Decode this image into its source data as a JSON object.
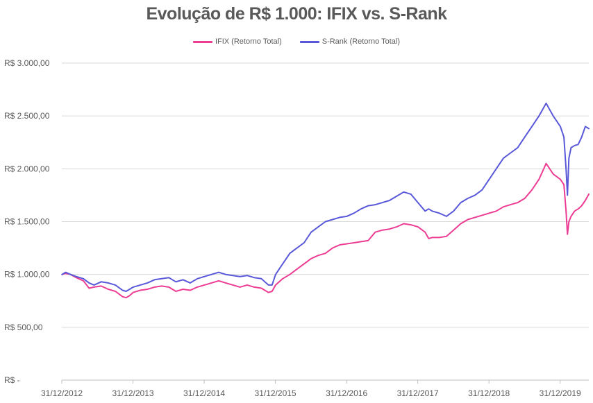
{
  "chart_data": {
    "type": "line",
    "title": "Evolução de R$ 1.000: IFIX vs. S-Rank",
    "xlabel": "",
    "ylabel": "",
    "x_tick_labels": [
      "31/12/2012",
      "31/12/2013",
      "31/12/2014",
      "31/12/2015",
      "31/12/2016",
      "31/12/2017",
      "31/12/2018",
      "31/12/2019"
    ],
    "x_ticks": [
      2012.997,
      2013.997,
      2014.997,
      2015.997,
      2016.997,
      2017.997,
      2018.997,
      2019.997
    ],
    "xlim": [
      2012.997,
      2020.4
    ],
    "y_tick_labels": [
      "R$ -",
      "R$ 500,00",
      "R$ 1.000,00",
      "R$ 1.500,00",
      "R$ 2.000,00",
      "R$ 2.500,00",
      "R$ 3.000,00"
    ],
    "y_ticks": [
      0,
      500,
      1000,
      1500,
      2000,
      2500,
      3000
    ],
    "ylim": [
      0,
      3000
    ],
    "grid": true,
    "legend_position": "top-center",
    "series": [
      {
        "name": "IFIX (Retorno Total)",
        "color": "#ec3c93",
        "x": [
          2013.0,
          2013.05,
          2013.12,
          2013.2,
          2013.3,
          2013.38,
          2013.45,
          2013.55,
          2013.65,
          2013.75,
          2013.85,
          2013.9,
          2013.95,
          2014.0,
          2014.1,
          2014.2,
          2014.3,
          2014.4,
          2014.5,
          2014.6,
          2014.7,
          2014.8,
          2014.9,
          2015.0,
          2015.1,
          2015.2,
          2015.3,
          2015.4,
          2015.5,
          2015.6,
          2015.7,
          2015.8,
          2015.9,
          2015.95,
          2016.0,
          2016.1,
          2016.2,
          2016.3,
          2016.4,
          2016.5,
          2016.6,
          2016.7,
          2016.8,
          2016.9,
          2017.0,
          2017.1,
          2017.2,
          2017.3,
          2017.4,
          2017.5,
          2017.6,
          2017.7,
          2017.8,
          2017.9,
          2018.0,
          2018.1,
          2018.15,
          2018.2,
          2018.3,
          2018.4,
          2018.5,
          2018.6,
          2018.7,
          2018.8,
          2018.9,
          2019.0,
          2019.1,
          2019.2,
          2019.3,
          2019.4,
          2019.5,
          2019.6,
          2019.7,
          2019.8,
          2019.9,
          2020.0,
          2020.05,
          2020.08,
          2020.1,
          2020.12,
          2020.15,
          2020.2,
          2020.25,
          2020.3,
          2020.35,
          2020.4
        ],
        "values": [
          1000,
          1010,
          1000,
          970,
          940,
          870,
          880,
          890,
          860,
          840,
          790,
          780,
          800,
          830,
          850,
          860,
          880,
          890,
          880,
          840,
          860,
          850,
          880,
          900,
          920,
          940,
          920,
          900,
          880,
          900,
          880,
          870,
          830,
          840,
          900,
          960,
          1000,
          1050,
          1100,
          1150,
          1180,
          1200,
          1250,
          1280,
          1290,
          1300,
          1310,
          1320,
          1400,
          1420,
          1430,
          1450,
          1480,
          1470,
          1450,
          1400,
          1340,
          1350,
          1350,
          1360,
          1420,
          1480,
          1520,
          1540,
          1560,
          1580,
          1600,
          1640,
          1660,
          1680,
          1720,
          1800,
          1900,
          2050,
          1950,
          1900,
          1850,
          1600,
          1380,
          1500,
          1550,
          1600,
          1620,
          1650,
          1700,
          1760
        ]
      },
      {
        "name": "S-Rank (Retorno Total)",
        "color": "#5858d9",
        "x": [
          2013.0,
          2013.05,
          2013.12,
          2013.2,
          2013.3,
          2013.38,
          2013.45,
          2013.55,
          2013.65,
          2013.75,
          2013.85,
          2013.9,
          2013.95,
          2014.0,
          2014.1,
          2014.2,
          2014.3,
          2014.4,
          2014.5,
          2014.6,
          2014.7,
          2014.8,
          2014.9,
          2015.0,
          2015.1,
          2015.2,
          2015.3,
          2015.4,
          2015.5,
          2015.6,
          2015.7,
          2015.8,
          2015.9,
          2015.95,
          2016.0,
          2016.1,
          2016.2,
          2016.3,
          2016.4,
          2016.5,
          2016.6,
          2016.7,
          2016.8,
          2016.9,
          2017.0,
          2017.1,
          2017.2,
          2017.3,
          2017.4,
          2017.5,
          2017.6,
          2017.7,
          2017.8,
          2017.9,
          2018.0,
          2018.1,
          2018.15,
          2018.2,
          2018.3,
          2018.4,
          2018.5,
          2018.6,
          2018.7,
          2018.8,
          2018.9,
          2019.0,
          2019.1,
          2019.2,
          2019.3,
          2019.4,
          2019.5,
          2019.6,
          2019.7,
          2019.8,
          2019.9,
          2020.0,
          2020.05,
          2020.08,
          2020.1,
          2020.12,
          2020.15,
          2020.2,
          2020.25,
          2020.3,
          2020.35,
          2020.4
        ],
        "values": [
          1000,
          1020,
          1000,
          980,
          960,
          920,
          900,
          930,
          920,
          900,
          850,
          840,
          860,
          880,
          900,
          920,
          950,
          960,
          970,
          930,
          950,
          920,
          960,
          980,
          1000,
          1020,
          1000,
          990,
          980,
          990,
          970,
          960,
          900,
          900,
          1000,
          1100,
          1200,
          1250,
          1300,
          1400,
          1450,
          1500,
          1520,
          1540,
          1550,
          1580,
          1620,
          1650,
          1660,
          1680,
          1700,
          1740,
          1780,
          1760,
          1680,
          1600,
          1620,
          1600,
          1580,
          1550,
          1600,
          1680,
          1720,
          1750,
          1800,
          1900,
          2000,
          2100,
          2150,
          2200,
          2300,
          2400,
          2500,
          2620,
          2500,
          2400,
          2300,
          2000,
          1750,
          2100,
          2200,
          2220,
          2230,
          2300,
          2400,
          2380
        ]
      }
    ]
  }
}
